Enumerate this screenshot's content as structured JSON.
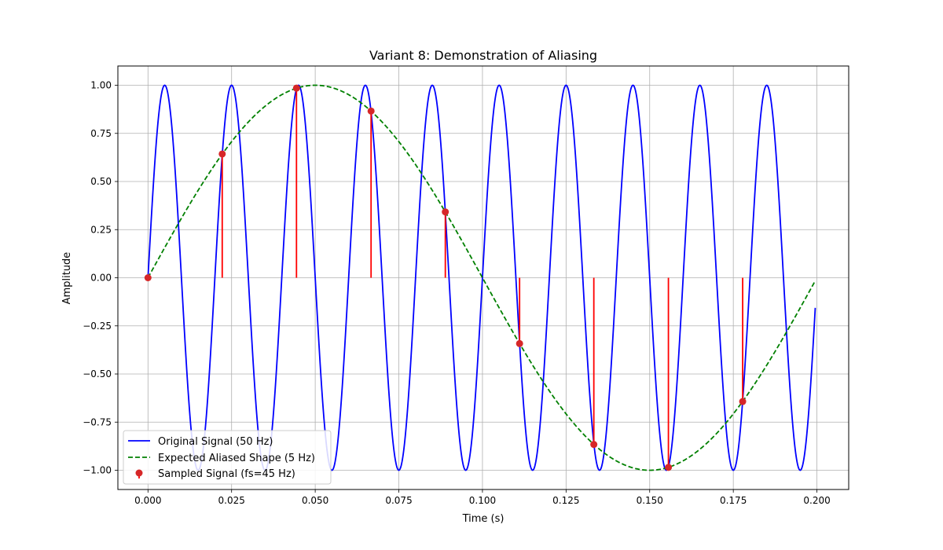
{
  "chart_data": {
    "type": "line",
    "title": "Variant 8: Demonstration of Aliasing",
    "xlabel": "Time (s)",
    "ylabel": "Amplitude",
    "xlim": [
      -0.009,
      0.2095
    ],
    "ylim": [
      -1.1,
      1.1
    ],
    "x_ticks": [
      0.0,
      0.025,
      0.05,
      0.075,
      0.1,
      0.125,
      0.15,
      0.175,
      0.2
    ],
    "x_tick_labels": [
      "0.000",
      "0.025",
      "0.050",
      "0.075",
      "0.100",
      "0.125",
      "0.150",
      "0.175",
      "0.200"
    ],
    "y_ticks": [
      -1.0,
      -0.75,
      -0.5,
      -0.25,
      0.0,
      0.25,
      0.5,
      0.75,
      1.0
    ],
    "y_tick_labels": [
      "−1.00",
      "−0.75",
      "−0.50",
      "−0.25",
      "0.00",
      "0.25",
      "0.50",
      "0.75",
      "1.00"
    ],
    "grid": true,
    "legend_position": "lower-left",
    "series": [
      {
        "name": "Original Signal (50 Hz)",
        "kind": "line",
        "style": "solid",
        "color": "#0000ff",
        "function": "sin",
        "frequency_hz": 50,
        "amplitude": 1.0,
        "t_start": 0.0,
        "t_end": 0.1995
      },
      {
        "name": "Expected Aliased Shape (5 Hz)",
        "kind": "line",
        "style": "dashed",
        "color": "#008000",
        "function": "sin",
        "frequency_hz": 5,
        "amplitude": 1.0,
        "t_start": 0.0,
        "t_end": 0.1995
      },
      {
        "name": "Sampled Signal (fs=45 Hz)",
        "kind": "stem",
        "color": "#ff0000",
        "marker_color": "#d62728",
        "x": [
          0.0,
          0.0222,
          0.0444,
          0.0667,
          0.0889,
          0.1111,
          0.1333,
          0.1556,
          0.1778
        ],
        "y": [
          0.0,
          0.643,
          0.985,
          0.866,
          0.342,
          -0.342,
          -0.866,
          -0.985,
          -0.643
        ]
      }
    ]
  }
}
